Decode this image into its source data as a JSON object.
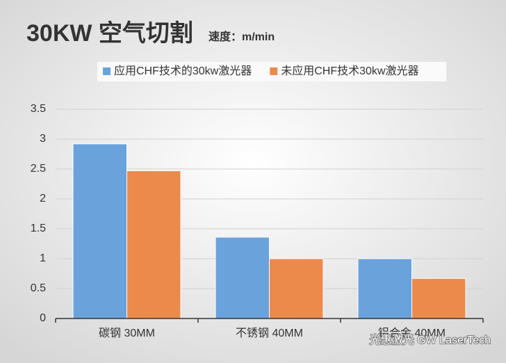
{
  "chart_data": {
    "type": "bar",
    "title": "30KW 空气切割",
    "subtitle": "速度：m/min",
    "categories": [
      "碳钢 30MM",
      "不锈钢 40MM",
      "铝合金 40MM"
    ],
    "series": [
      {
        "name": "应用CHF技术的30kw激光器",
        "color": "#6aa3dc",
        "values": [
          2.92,
          1.36,
          1.0
        ]
      },
      {
        "name": "未应用CHF技术30kw激光器",
        "color": "#ec8a4c",
        "values": [
          2.47,
          1.0,
          0.67
        ]
      }
    ],
    "ylim": [
      0,
      3.5
    ],
    "yticks": [
      0,
      0.5,
      1,
      1.5,
      2,
      2.5,
      3,
      3.5
    ],
    "grid": true,
    "legend": "top"
  },
  "watermark": "光惠激光 GW LaserTech"
}
